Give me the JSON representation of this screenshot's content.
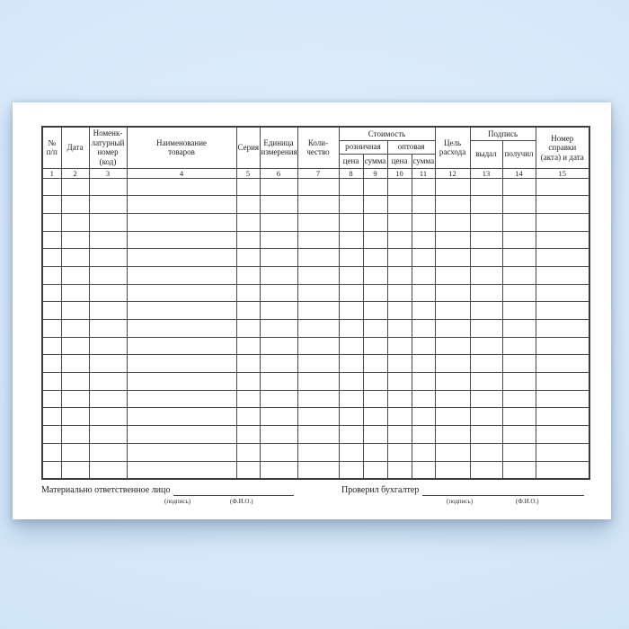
{
  "colors": {
    "background_center": "#e3f0fd",
    "background_edge": "#cadff2",
    "paper": "#ffffff",
    "grid_line": "#4a4a4a",
    "text": "#1e1e1e"
  },
  "form": {
    "header": {
      "row_number": "№\nп/п",
      "date": "Дата",
      "nomenclature": "Номенк-\nлатурный\nномер (код)",
      "goods_name": "Наименование\nтоваров",
      "series": "Серия",
      "unit": "Единица\nизмерения",
      "quantity": "Коли-\nчество",
      "cost_group": "Стоимость",
      "retail": "розничная",
      "wholesale": "оптовая",
      "price_retail": "цена",
      "sum_retail": "сумма",
      "price_wholesale": "цена",
      "sum_wholesale": "сумма",
      "purpose": "Цель\nрасхода",
      "signature_group": "Подпись",
      "issued": "выдал",
      "received": "получил",
      "certificate": "Номер\nсправки\n(акта) и дата"
    },
    "column_numbers": [
      "1",
      "2",
      "3",
      "4",
      "5",
      "6",
      "7",
      "8",
      "9",
      "10",
      "11",
      "12",
      "13",
      "14",
      "15"
    ],
    "body": {
      "row_count": 17,
      "column_count": 15
    }
  },
  "footer": {
    "responsible_label": "Материально ответственное лицо",
    "accountant_label": "Проверил бухгалтер",
    "signature_caption": "(подпись)",
    "name_caption": "(Ф.И.О.)"
  }
}
